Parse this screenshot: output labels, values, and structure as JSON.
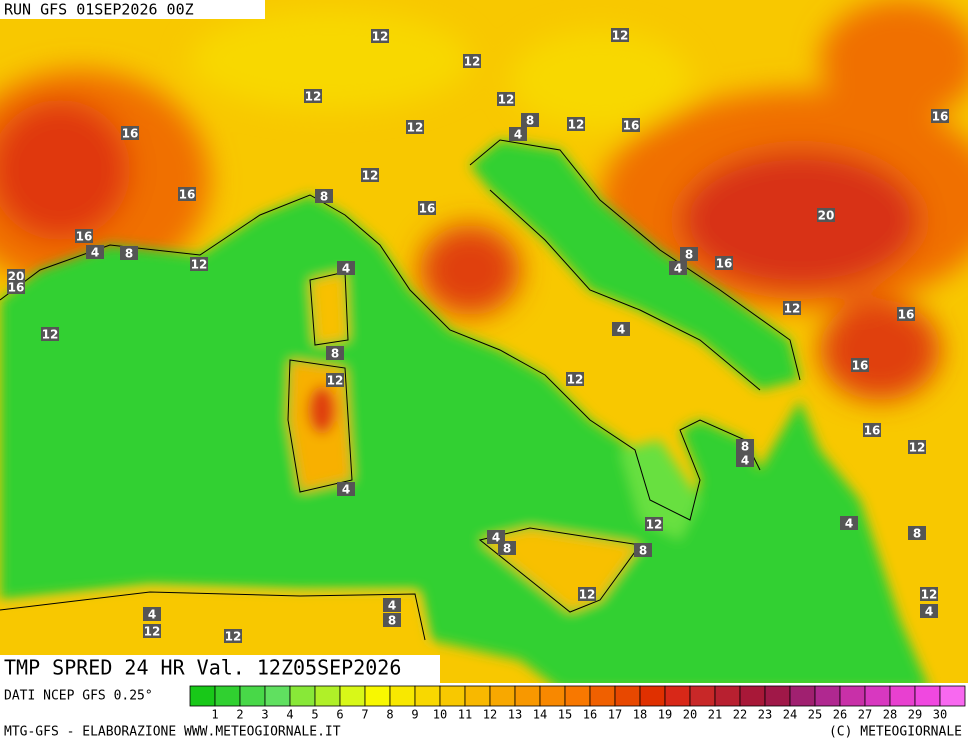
{
  "header": {
    "run_label": "RUN GFS 01SEP2026 00Z"
  },
  "map": {
    "title": "TMP SPRED 24 HR Val. 12Z05SEP2026",
    "contour_labels": [
      12,
      12,
      12,
      12,
      12,
      12,
      12,
      16,
      8,
      4,
      16,
      16,
      16,
      12,
      8,
      16,
      20,
      16,
      4,
      8,
      12,
      4,
      8,
      4,
      16,
      20,
      16,
      12,
      16,
      12,
      4,
      8,
      12,
      16,
      12,
      16,
      12,
      8,
      4,
      4,
      4,
      12,
      8,
      4,
      8,
      8,
      12,
      12,
      4,
      4,
      8,
      4,
      12,
      12
    ]
  },
  "colorbar": {
    "labels": [
      1,
      2,
      3,
      4,
      5,
      6,
      7,
      8,
      9,
      10,
      11,
      12,
      13,
      14,
      15,
      16,
      17,
      18,
      19,
      20,
      21,
      22,
      23,
      24,
      25,
      26,
      27,
      28,
      29,
      30
    ],
    "colors": [
      "#18c818",
      "#30d030",
      "#48d848",
      "#60e060",
      "#88e838",
      "#b0f028",
      "#d8f818",
      "#f8f800",
      "#f8e800",
      "#f8d800",
      "#f8c800",
      "#f8b800",
      "#f8a800",
      "#f89800",
      "#f88800",
      "#f87800",
      "#f06000",
      "#e84800",
      "#e03000",
      "#d82818",
      "#c82828",
      "#b82030",
      "#a81838",
      "#a01848",
      "#a02070",
      "#b02890",
      "#c830a8",
      "#d838c0",
      "#e840d0",
      "#f048e0",
      "#f868f0"
    ]
  },
  "footer": {
    "data_source": "DATI NCEP GFS 0.25°",
    "credit_left": "MTG-GFS - ELABORAZIONE WWW.METEOGIORNALE.IT",
    "credit_right": "(C) METEOGIORNALE"
  }
}
